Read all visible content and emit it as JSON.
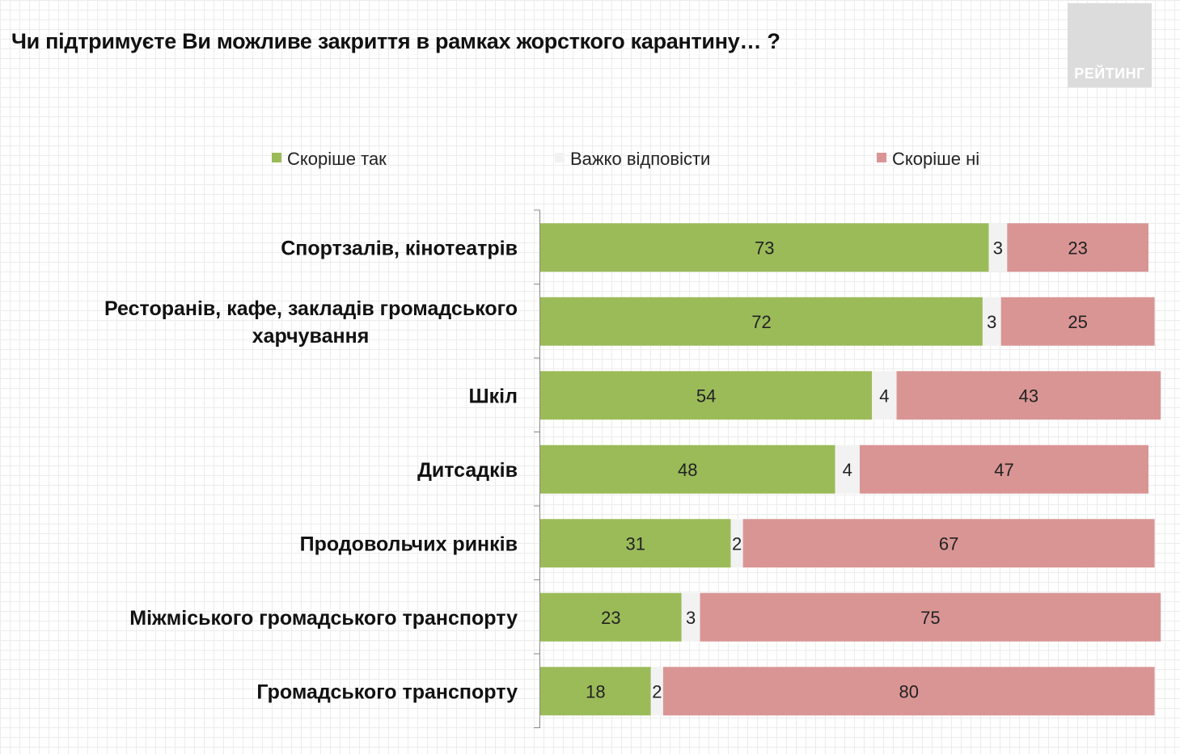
{
  "title": "Чи підтримуєте Ви можливе закриття в рамках жорсткого карантину… ?",
  "logo_text": "РЕЙТИНГ",
  "chart_data": {
    "type": "bar",
    "orientation": "horizontal",
    "stacked": true,
    "categories": [
      "Спортзалів, кінотеатрів",
      "Ресторанів, кафе, закладів громадського харчування",
      "Шкіл",
      "Дитсадків",
      "Продовольчих ринків",
      "Міжміського громадського транспорту",
      "Громадського транспорту"
    ],
    "category_lines": [
      [
        "Спортзалів, кінотеатрів"
      ],
      [
        "Ресторанів, кафе, закладів громадського",
        "харчування"
      ],
      [
        "Шкіл"
      ],
      [
        "Дитсадків"
      ],
      [
        "Продовольчих ринків"
      ],
      [
        "Міжміського громадського транспорту"
      ],
      [
        "Громадського транспорту"
      ]
    ],
    "series": [
      {
        "name": "Скоріше так",
        "color": "#9bbb59",
        "values": [
          73,
          72,
          54,
          48,
          31,
          23,
          18
        ]
      },
      {
        "name": "Важко відповісти",
        "color": "#f2f2f2",
        "values": [
          3,
          3,
          4,
          4,
          2,
          3,
          2
        ]
      },
      {
        "name": "Скоріше ні",
        "color": "#d99594",
        "values": [
          23,
          25,
          43,
          47,
          67,
          75,
          80
        ]
      }
    ],
    "xlim": [
      0,
      99
    ],
    "legend_position": "top",
    "data_labels": true
  }
}
